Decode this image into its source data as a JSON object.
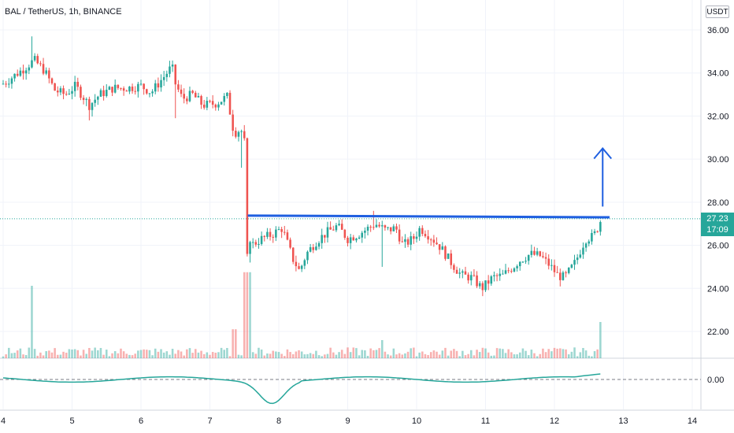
{
  "header": {
    "symbol_line": "BAL / TetherUS, 1h, BINANCE",
    "currency": "USDT"
  },
  "last_price": {
    "value": "27.23",
    "countdown": "17:09",
    "color": "#26a69a"
  },
  "colors": {
    "up": "#26a69a",
    "down": "#ef5350",
    "drawing": "#1e5fe0",
    "osc": "#26a69a",
    "grid": "#f0f3fa"
  },
  "chart_data": {
    "type": "candlestick",
    "y_axis": {
      "ylim": [
        20.9,
        36.7
      ],
      "ticks": [
        "36.00",
        "34.00",
        "32.00",
        "30.00",
        "28.00",
        "26.00",
        "24.00",
        "22.00"
      ]
    },
    "x_axis": {
      "ticks": [
        "4",
        "5",
        "6",
        "7",
        "8",
        "9",
        "10",
        "11",
        "12",
        "13",
        "14"
      ],
      "xlim": [
        4.0,
        14.0
      ]
    },
    "lower_pane": {
      "ticks": [
        "0.00"
      ]
    },
    "ohlc": [],
    "volume": [],
    "oscillator": [],
    "drawings": {
      "horizontal_level": 27.3,
      "arrow": {
        "from": 27.8,
        "to": 30.5,
        "direction": "up"
      }
    }
  }
}
